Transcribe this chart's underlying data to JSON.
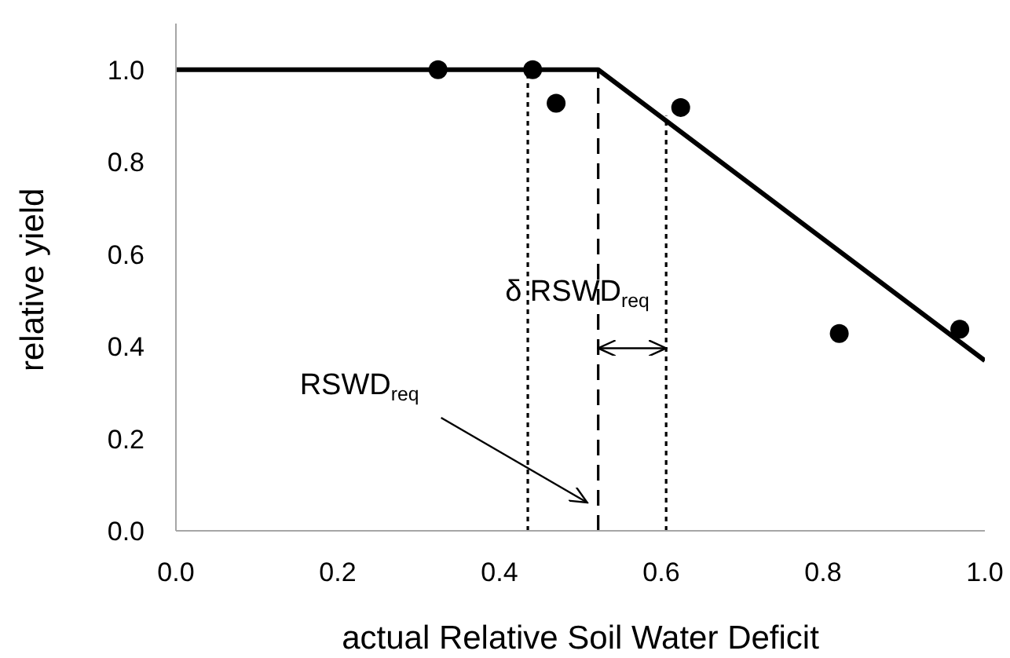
{
  "chart_data": {
    "type": "scatter",
    "xlabel": "actual Relative Soil Water Deficit",
    "ylabel": "relative yield",
    "xlim": [
      0,
      1
    ],
    "xticks": [
      {
        "value": 0,
        "label": "0.0"
      },
      0.2,
      0.4,
      0.6,
      0.8,
      {
        "value": 1,
        "label": "1.0"
      }
    ],
    "ylim": [
      0,
      1.1
    ],
    "yticks": [
      {
        "value": 0,
        "label": "0.0"
      },
      0.2,
      0.4,
      0.6,
      0.8,
      {
        "value": 1,
        "label": "1.0"
      }
    ],
    "series": [
      {
        "color": "#000000",
        "marker": "circle",
        "x": [
          0.324,
          0.441,
          0.47,
          0.624,
          0.82,
          0.969
        ],
        "values": [
          1.0,
          1.0,
          0.927,
          0.918,
          0.428,
          0.437
        ]
      },
      {
        "type": "line",
        "color": "#000000",
        "marker": "none",
        "line_style": "solid",
        "x": [
          0,
          0.522,
          1.0
        ],
        "values": [
          1.0,
          1.0,
          0.369
        ]
      },
      {
        "type": "line",
        "color": "#000000",
        "marker": "none",
        "line_style": "dotted",
        "x": [
          0.435,
          0.435
        ],
        "values": [
          0,
          1.0
        ]
      },
      {
        "type": "line",
        "color": "#000000",
        "marker": "none",
        "line_style": "dashed",
        "x": [
          0.522,
          0.522
        ],
        "values": [
          0,
          1.0
        ]
      },
      {
        "type": "line",
        "color": "#000000",
        "marker": "none",
        "line_style": "dotted",
        "x": [
          0.606,
          0.606
        ],
        "values": [
          0,
          0.9
        ]
      }
    ],
    "annotations": [
      "δ RSWD$_{req}$",
      "RSWD$_{req}$"
    ]
  }
}
